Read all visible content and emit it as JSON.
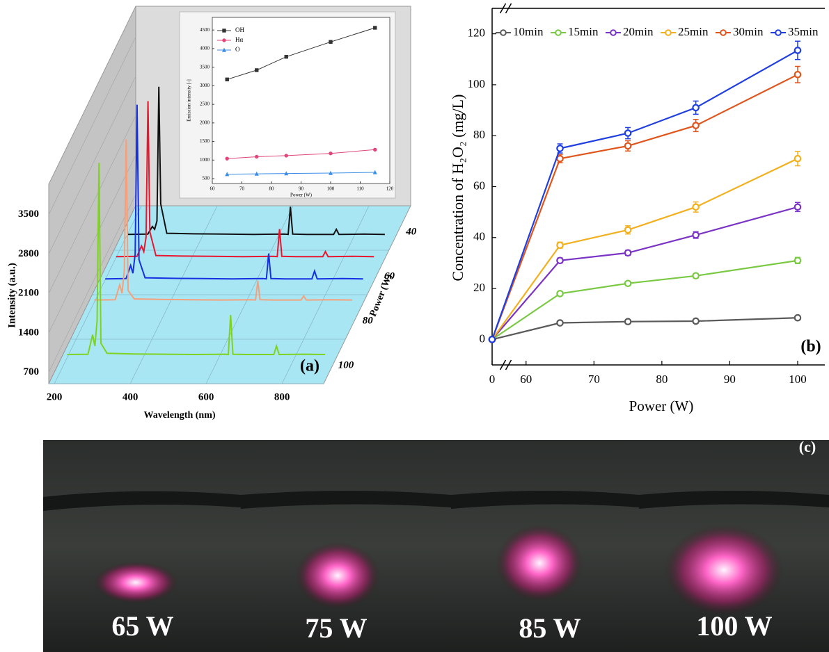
{
  "chart_data": [
    {
      "type": "spectra3d",
      "label": "(a)",
      "xlabel": "Wavelength (nm)",
      "ylabel": "Intensity (a.u.)",
      "zlabel": "Power (W)",
      "xlim": [
        185,
        910
      ],
      "xticks": [
        200,
        400,
        600,
        800
      ],
      "ylim": [
        500,
        4040
      ],
      "yticks": [
        700,
        1400,
        2100,
        2800,
        3500
      ],
      "zlim": [
        20,
        100
      ],
      "zticks": [
        40,
        60,
        80,
        100
      ],
      "x": [
        225,
        280,
        292,
        298,
        304,
        309,
        314,
        330,
        400,
        480,
        560,
        640,
        650,
        656,
        662,
        700,
        770,
        777,
        784,
        850,
        905
      ],
      "series": [
        {
          "color": "#111111",
          "z": 42,
          "values": [
            860,
            865,
            1000,
            950,
            1100,
            3480,
            1400,
            880,
            870,
            865,
            860,
            865,
            860,
            1350,
            865,
            860,
            860,
            950,
            860,
            865,
            860
          ]
        },
        {
          "color": "#e8162e",
          "z": 52,
          "values": [
            860,
            865,
            1050,
            950,
            1200,
            3620,
            1300,
            880,
            870,
            865,
            860,
            865,
            860,
            1350,
            865,
            860,
            860,
            950,
            860,
            865,
            860
          ]
        },
        {
          "color": "#1530e0",
          "z": 62,
          "values": [
            860,
            865,
            1100,
            960,
            1300,
            3950,
            1200,
            880,
            870,
            865,
            860,
            865,
            860,
            1310,
            865,
            860,
            860,
            1000,
            860,
            865,
            860
          ]
        },
        {
          "color": "#f5a07a",
          "z": 72,
          "values": [
            880,
            885,
            1150,
            1000,
            1400,
            3730,
            1050,
            900,
            890,
            885,
            880,
            885,
            880,
            1220,
            885,
            880,
            880,
            950,
            880,
            885,
            880
          ]
        },
        {
          "color": "#7ed321",
          "z": 97,
          "values": [
            900,
            905,
            1250,
            1050,
            1500,
            4300,
            1100,
            920,
            910,
            905,
            900,
            905,
            900,
            1600,
            905,
            900,
            900,
            1050,
            900,
            905,
            900
          ]
        }
      ]
    },
    {
      "type": "line",
      "xlabel": "Power (W)",
      "ylabel": "Emission intensity [-]",
      "xlim": [
        60,
        120
      ],
      "xticks": [
        60,
        70,
        80,
        90,
        100,
        110,
        120
      ],
      "ylim": [
        370,
        4840
      ],
      "yticks": [
        500,
        1000,
        1500,
        2000,
        2500,
        3000,
        3500,
        4000,
        4500
      ],
      "x": [
        65,
        75,
        85,
        100,
        115
      ],
      "series": [
        {
          "name": "OH",
          "color": "#333333",
          "marker": "square",
          "values": [
            3170,
            3420,
            3780,
            4180,
            4560
          ]
        },
        {
          "name": "Hα",
          "color": "#e0457b",
          "marker": "circle",
          "values": [
            1040,
            1090,
            1120,
            1180,
            1280
          ]
        },
        {
          "name": "O",
          "color": "#3a8ee6",
          "marker": "triangle",
          "values": [
            620,
            630,
            640,
            650,
            670
          ]
        }
      ]
    },
    {
      "type": "line",
      "label": "(b)",
      "xlabel": "Power (W)",
      "ylabel": "Concentration of H₂O₂ (mg/L)",
      "xlim": [
        0,
        104
      ],
      "xbreak": [
        2,
        57
      ],
      "xticks": [
        0,
        60,
        70,
        80,
        90,
        100
      ],
      "ylim": [
        -10,
        130
      ],
      "yticks": [
        0,
        20,
        40,
        60,
        80,
        100,
        120
      ],
      "x": [
        0,
        65,
        75,
        85,
        100
      ],
      "series": [
        {
          "name": "10min",
          "color": "#5a5a5a",
          "values": [
            0,
            6.5,
            7,
            7.2,
            8.5
          ],
          "errors": [
            0,
            0.6,
            0.6,
            0.6,
            0.8
          ]
        },
        {
          "name": "15min",
          "color": "#7ac943",
          "values": [
            0,
            18,
            22,
            25,
            31
          ],
          "errors": [
            0,
            0.8,
            0.8,
            0.9,
            1.2
          ]
        },
        {
          "name": "20min",
          "color": "#7a33c4",
          "values": [
            0,
            31,
            34,
            41,
            52
          ],
          "errors": [
            0,
            1,
            1,
            1.3,
            1.8
          ]
        },
        {
          "name": "25min",
          "color": "#f2b01e",
          "values": [
            0,
            37,
            43,
            52,
            71
          ],
          "errors": [
            0,
            1.2,
            1.6,
            2,
            2.8
          ]
        },
        {
          "name": "30min",
          "color": "#e0551b",
          "values": [
            0,
            71,
            76,
            84,
            104
          ],
          "errors": [
            0,
            1.6,
            2,
            2.4,
            3.2
          ]
        },
        {
          "name": "35min",
          "color": "#1f3fe0",
          "values": [
            0,
            75,
            81,
            91,
            113.5
          ],
          "errors": [
            0,
            1.8,
            2.2,
            2.6,
            3.6
          ]
        }
      ]
    }
  ],
  "photos": {
    "label": "(c)",
    "captions": [
      "65 W",
      "75 W",
      "85 W",
      "100 W"
    ]
  }
}
